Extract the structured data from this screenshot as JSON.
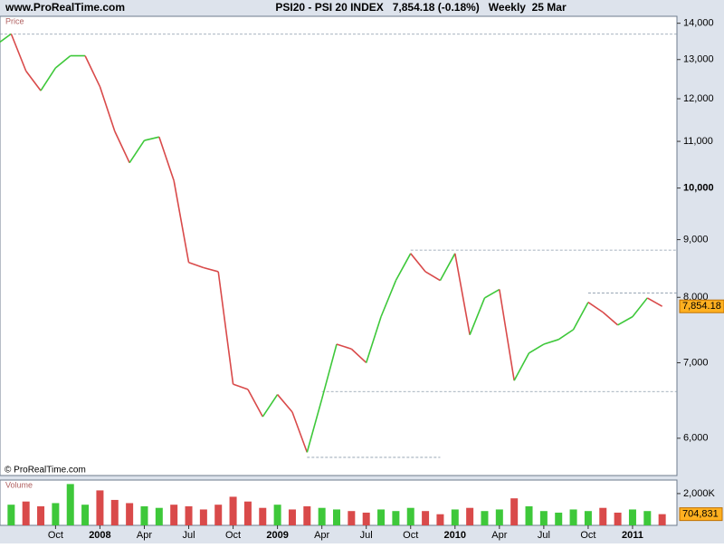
{
  "header": {
    "site": "www.ProRealTime.com",
    "title": "PSI20 - PSI 20 INDEX   7,854.18 (-0.18%)   Weekly  25 Mar",
    "copyright": "© ProRealTime.com"
  },
  "chart_data": [
    {
      "type": "line",
      "panel_label": "Price",
      "log": true,
      "up_color": "#3ec83a",
      "down_color": "#d94a4a",
      "x": [
        "2007-06",
        "2007-07",
        "2007-08",
        "2007-09",
        "2007-10",
        "2007-11",
        "2007-12",
        "2008-01",
        "2008-02",
        "2008-03",
        "2008-04",
        "2008-05",
        "2008-06",
        "2008-07",
        "2008-08",
        "2008-09",
        "2008-10",
        "2008-11",
        "2008-12",
        "2009-01",
        "2009-02",
        "2009-03",
        "2009-04",
        "2009-05",
        "2009-06",
        "2009-07",
        "2009-08",
        "2009-09",
        "2009-10",
        "2009-11",
        "2009-12",
        "2010-01",
        "2010-02",
        "2010-03",
        "2010-04",
        "2010-05",
        "2010-06",
        "2010-07",
        "2010-08",
        "2010-09",
        "2010-10",
        "2010-11",
        "2010-12",
        "2011-01",
        "2011-02",
        "2011-03"
      ],
      "values": [
        13400,
        13700,
        12700,
        12200,
        12780,
        13100,
        13100,
        12300,
        11230,
        10530,
        11020,
        11100,
        10150,
        8590,
        8500,
        8430,
        6700,
        6630,
        6270,
        6560,
        6330,
        5830,
        6500,
        7270,
        7200,
        7000,
        7690,
        8280,
        8750,
        8430,
        8280,
        8750,
        7410,
        7990,
        8130,
        6750,
        7140,
        7270,
        7340,
        7490,
        7920,
        7760,
        7560,
        7690,
        7990,
        7854.18
      ],
      "last_label": "7,854.18",
      "xlim": [
        "2007-06",
        "2011-04"
      ],
      "xticks": [
        {
          "value": "2007-10",
          "label": "Oct"
        },
        {
          "value": "2008-01",
          "label": "2008"
        },
        {
          "value": "2008-04",
          "label": "Apr"
        },
        {
          "value": "2008-07",
          "label": "Jul"
        },
        {
          "value": "2008-10",
          "label": "Oct"
        },
        {
          "value": "2009-01",
          "label": "2009"
        },
        {
          "value": "2009-04",
          "label": "Apr"
        },
        {
          "value": "2009-07",
          "label": "Jul"
        },
        {
          "value": "2009-10",
          "label": "Oct"
        },
        {
          "value": "2010-01",
          "label": "2010"
        },
        {
          "value": "2010-04",
          "label": "Apr"
        },
        {
          "value": "2010-07",
          "label": "Jul"
        },
        {
          "value": "2010-10",
          "label": "Oct"
        },
        {
          "value": "2011-01",
          "label": "2011"
        }
      ],
      "ylim": [
        5560,
        14200
      ],
      "yticks": [
        {
          "value": 6000,
          "label": "6,000"
        },
        {
          "value": 7000,
          "label": "7,000"
        },
        {
          "value": 8000,
          "label": "8,000"
        },
        {
          "value": 9000,
          "label": "9,000"
        },
        {
          "value": 10000,
          "label": "10,000"
        },
        {
          "value": 11000,
          "label": "11,000"
        },
        {
          "value": 12000,
          "label": "12,000"
        },
        {
          "value": 13000,
          "label": "13,000"
        },
        {
          "value": 14000,
          "label": "14,000"
        }
      ],
      "reference_lines": [
        {
          "value": 13690,
          "x_start": "2007-06",
          "x_end": "2011-04"
        },
        {
          "value": 8810,
          "x_start": "2009-10",
          "x_end": "2011-04"
        },
        {
          "value": 8070,
          "x_start": "2010-10",
          "x_end": "2011-04"
        },
        {
          "value": 6600,
          "x_start": "2009-04",
          "x_end": "2011-04"
        },
        {
          "value": 5770,
          "x_start": "2009-03",
          "x_end": "2009-12"
        }
      ]
    },
    {
      "type": "bar",
      "panel_label": "Volume",
      "values": [
        1100000,
        1300000,
        1500000,
        1200000,
        1400000,
        2600000,
        1300000,
        2200000,
        1600000,
        1400000,
        1200000,
        1100000,
        1300000,
        1200000,
        1000000,
        1300000,
        1800000,
        1500000,
        1100000,
        1300000,
        1000000,
        1200000,
        1100000,
        1000000,
        900000,
        800000,
        1000000,
        900000,
        1100000,
        900000,
        700000,
        1000000,
        1100000,
        900000,
        1000000,
        1700000,
        1200000,
        900000,
        800000,
        1000000,
        900000,
        1100000,
        800000,
        1000000,
        900000,
        704831
      ],
      "last_label": "704,831",
      "ylim": [
        0,
        2850000
      ],
      "yticks": [
        {
          "value": 2000000,
          "label": "2,000K"
        }
      ]
    }
  ]
}
